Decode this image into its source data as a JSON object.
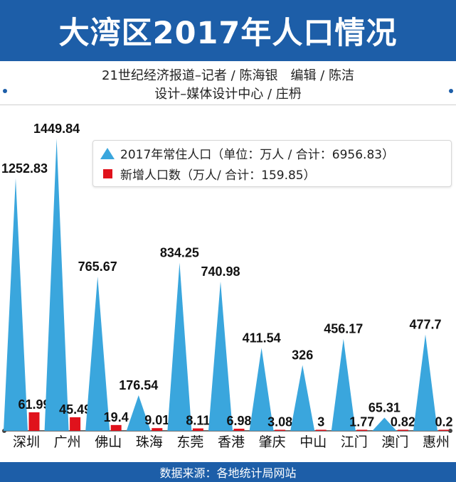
{
  "header": {
    "title": "大湾区2017年人口情况",
    "credit_line1": "21世纪经济报道–记者 / 陈海银　编辑 / 陈洁",
    "credit_line2": "设计–媒体设计中心 / 庄枬"
  },
  "legend": {
    "population_label": "2017年常住人口（单位：万人 / 合计：6956.83）",
    "new_label": "新增人口数（万人/ 合计：159.85）"
  },
  "footer": {
    "source": "数据来源：各地统计局网站"
  },
  "colors": {
    "accent": "#1d5ea8",
    "population": "#3aa6dd",
    "new": "#e0121c"
  },
  "chart_data": {
    "type": "bar",
    "categories": [
      "深圳",
      "广州",
      "佛山",
      "珠海",
      "东莞",
      "香港",
      "肇庆",
      "中山",
      "江门",
      "澳门",
      "惠州"
    ],
    "series": [
      {
        "name": "2017年常住人口",
        "values": [
          1252.83,
          1449.84,
          765.67,
          176.54,
          834.25,
          740.98,
          411.54,
          326,
          456.17,
          65.31,
          477.7
        ]
      },
      {
        "name": "新增人口数",
        "values": [
          61.99,
          45.49,
          19.4,
          9.01,
          8.11,
          6.98,
          3.08,
          3,
          1.77,
          0.82,
          0.2
        ]
      }
    ],
    "value_labels": {
      "population": [
        "1252.83",
        "1449.84",
        "765.67",
        "176.54",
        "834.25",
        "740.98",
        "411.54",
        "326",
        "456.17",
        "65.31",
        "477.7"
      ],
      "new": [
        "61.99",
        "45.49",
        "19.4",
        "9.01",
        "8.11",
        "6.98",
        "3.08",
        "3",
        "1.77",
        "0.82",
        "0.2"
      ]
    },
    "xlabel": "",
    "ylabel": "",
    "ylim": [
      0,
      1500
    ],
    "grid": false,
    "legend_position": "top-right"
  }
}
